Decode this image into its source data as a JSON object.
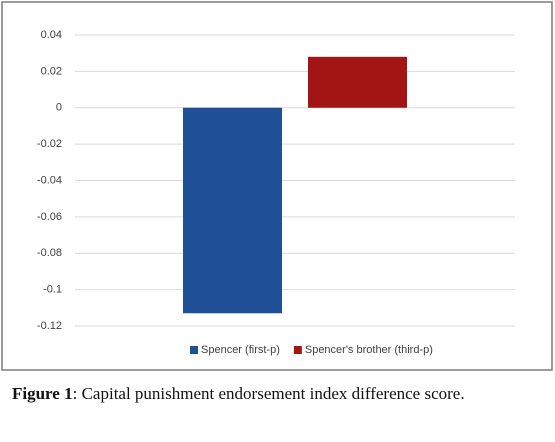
{
  "chart_data": {
    "type": "bar",
    "categories": [
      null
    ],
    "series": [
      {
        "name": "Spencer (first-p)",
        "color": "#1f4f97",
        "values": [
          -0.113
        ]
      },
      {
        "name": "Spencer's brother (third-p)",
        "color": "#a31515",
        "values": [
          0.028
        ]
      }
    ],
    "ylim": [
      -0.12,
      0.04
    ],
    "yticks": [
      -0.12,
      -0.1,
      -0.08,
      -0.06,
      -0.04,
      -0.02,
      0,
      0.02,
      0.04
    ],
    "grid": true,
    "legend": "bottom"
  },
  "figure_label": "Figure 1",
  "caption": ": Capital punishment endorsement index difference score."
}
